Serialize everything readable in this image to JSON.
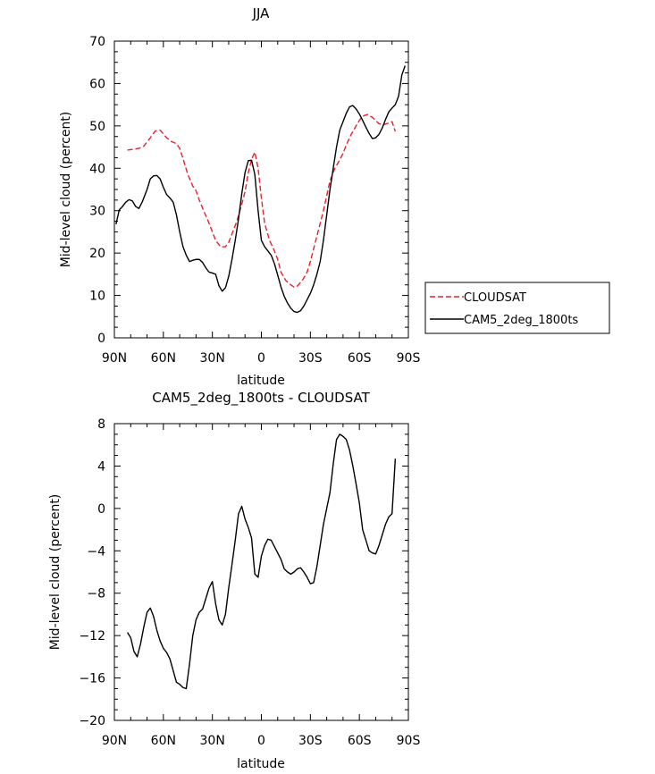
{
  "chart_data": [
    {
      "type": "line",
      "title": "JJA",
      "xlabel": "latitude",
      "ylabel": "Mid-level cloud (percent)",
      "xlim": [
        90,
        -90
      ],
      "ylim": [
        0,
        70
      ],
      "xtick_values": [
        90,
        60,
        30,
        0,
        -30,
        -60,
        -90
      ],
      "xtick_labels": [
        "90N",
        "60N",
        "30N",
        "0",
        "30S",
        "60S",
        "90S"
      ],
      "ytick_values": [
        0,
        10,
        20,
        30,
        40,
        50,
        60,
        70
      ],
      "ytick_labels": [
        "0",
        "10",
        "20",
        "30",
        "40",
        "50",
        "60",
        "70"
      ],
      "grid": false,
      "legend": "right",
      "series": [
        {
          "name": "CLOUDSAT",
          "color": "#e8202a",
          "dash": "dashed",
          "x": [
            82,
            78,
            75,
            72,
            68,
            65,
            62,
            58,
            55,
            52,
            50,
            48,
            45,
            42,
            40,
            38,
            35,
            32,
            30,
            28,
            25,
            22,
            20,
            18,
            15,
            12,
            10,
            8,
            6,
            5,
            4,
            2,
            0,
            -2,
            -5,
            -8,
            -10,
            -12,
            -15,
            -18,
            -20,
            -22,
            -25,
            -28,
            -30,
            -32,
            -35,
            -38,
            -40,
            -42,
            -45,
            -48,
            -50,
            -52,
            -55,
            -58,
            -60,
            -62,
            -65,
            -68,
            -70,
            -72,
            -75,
            -78,
            -80,
            -82
          ],
          "y": [
            44.3,
            44.5,
            44.7,
            45.2,
            47.2,
            48.8,
            49.0,
            47.2,
            46.3,
            45.8,
            44.7,
            42.3,
            38.5,
            35.8,
            34.7,
            32.5,
            29.7,
            27.0,
            25.0,
            23.0,
            21.5,
            21.5,
            22.5,
            24.5,
            27.5,
            31.5,
            34.5,
            39.0,
            42.0,
            43.0,
            43.8,
            40.0,
            33.0,
            27.0,
            23.0,
            20.5,
            18.5,
            15.5,
            13.5,
            12.5,
            12.0,
            12.2,
            13.5,
            15.5,
            18.0,
            21.0,
            25.5,
            30.0,
            33.5,
            37.0,
            40.0,
            42.0,
            43.5,
            45.5,
            48.0,
            50.0,
            51.3,
            52.3,
            52.7,
            52.0,
            51.3,
            50.5,
            50.3,
            50.7,
            51.0,
            48.7
          ]
        },
        {
          "name": "CAM5_2deg_1800ts",
          "color": "#000000",
          "dash": "solid",
          "x": [
            89,
            87,
            85,
            83,
            81,
            79,
            77,
            75,
            73,
            70,
            68,
            66,
            64,
            62,
            60,
            58,
            56,
            54,
            52,
            50,
            48,
            46,
            44,
            42,
            40,
            38,
            36,
            34,
            32,
            30,
            28,
            26,
            24,
            22,
            20,
            18,
            16,
            14,
            12,
            10,
            8,
            6,
            4,
            2,
            0,
            -2,
            -4,
            -6,
            -8,
            -10,
            -12,
            -14,
            -16,
            -18,
            -20,
            -22,
            -24,
            -26,
            -28,
            -30,
            -32,
            -34,
            -36,
            -38,
            -40,
            -42,
            -44,
            -46,
            -48,
            -50,
            -52,
            -54,
            -56,
            -58,
            -60,
            -62,
            -64,
            -66,
            -68,
            -70,
            -72,
            -74,
            -76,
            -78,
            -80,
            -82,
            -84,
            -86,
            -88
          ],
          "y": [
            26.8,
            30.2,
            31.0,
            32.0,
            32.6,
            32.3,
            31.0,
            30.5,
            32.0,
            35.0,
            37.5,
            38.2,
            38.3,
            37.5,
            35.5,
            33.8,
            33.0,
            32.0,
            29.0,
            25.0,
            21.5,
            19.5,
            18.0,
            18.3,
            18.5,
            18.5,
            17.8,
            16.5,
            15.5,
            15.3,
            15.0,
            12.3,
            11.0,
            11.8,
            14.5,
            18.5,
            23.0,
            28.0,
            34.0,
            39.0,
            41.8,
            41.9,
            38.5,
            30.0,
            23.0,
            21.5,
            20.5,
            19.5,
            17.5,
            14.8,
            12.0,
            9.8,
            8.2,
            7.0,
            6.2,
            6.0,
            6.4,
            7.5,
            9.0,
            10.5,
            12.5,
            15.0,
            18.0,
            23.0,
            29.0,
            35.0,
            40.0,
            45.0,
            49.0,
            51.0,
            53.0,
            54.5,
            54.8,
            54.0,
            52.8,
            51.3,
            49.7,
            48.2,
            47.0,
            47.2,
            48.0,
            49.5,
            51.5,
            53.3,
            54.2,
            55.0,
            57.0,
            62.0,
            64.2
          ]
        }
      ]
    },
    {
      "type": "line",
      "title": "CAM5_2deg_1800ts - CLOUDSAT",
      "xlabel": "latitude",
      "ylabel": "Mid-level cloud (percent)",
      "xlim": [
        90,
        -90
      ],
      "ylim": [
        -20,
        8
      ],
      "xtick_values": [
        90,
        60,
        30,
        0,
        -30,
        -60,
        -90
      ],
      "xtick_labels": [
        "90N",
        "60N",
        "30N",
        "0",
        "30S",
        "60S",
        "90S"
      ],
      "ytick_values": [
        -20,
        -16,
        -12,
        -8,
        -4,
        0,
        4,
        8
      ],
      "ytick_labels": [
        "−20",
        "−16",
        "−12",
        "−8",
        "−4",
        "0",
        "4",
        "8"
      ],
      "grid": false,
      "series": [
        {
          "color": "#000000",
          "dash": "solid",
          "x": [
            82,
            80,
            78,
            76,
            74,
            72,
            70,
            68,
            66,
            64,
            62,
            60,
            58,
            56,
            54,
            52,
            50,
            48,
            46,
            44,
            42,
            40,
            38,
            36,
            34,
            32,
            30,
            28,
            26,
            24,
            22,
            20,
            18,
            16,
            14,
            12,
            10,
            8,
            6,
            4,
            2,
            0,
            -2,
            -4,
            -6,
            -8,
            -10,
            -12,
            -14,
            -16,
            -18,
            -20,
            -22,
            -24,
            -26,
            -28,
            -30,
            -32,
            -34,
            -36,
            -38,
            -40,
            -42,
            -44,
            -46,
            -48,
            -50,
            -52,
            -54,
            -56,
            -58,
            -60,
            -62,
            -64,
            -66,
            -68,
            -70,
            -72,
            -74,
            -76,
            -78,
            -80,
            -82
          ],
          "y": [
            -11.7,
            -12.2,
            -13.5,
            -14.0,
            -12.8,
            -11.2,
            -9.8,
            -9.4,
            -10.2,
            -11.5,
            -12.5,
            -13.2,
            -13.6,
            -14.2,
            -15.3,
            -16.4,
            -16.6,
            -16.9,
            -17.0,
            -14.7,
            -12.0,
            -10.5,
            -9.8,
            -9.5,
            -8.5,
            -7.5,
            -6.9,
            -9.0,
            -10.5,
            -11.0,
            -10.0,
            -7.5,
            -5.3,
            -3.0,
            -0.5,
            0.2,
            -1.0,
            -1.8,
            -2.8,
            -6.2,
            -6.5,
            -4.5,
            -3.5,
            -2.9,
            -3.0,
            -3.6,
            -4.2,
            -4.8,
            -5.7,
            -6.0,
            -6.2,
            -6.0,
            -5.7,
            -5.6,
            -6.0,
            -6.5,
            -7.1,
            -7.0,
            -5.5,
            -3.5,
            -1.5,
            0.0,
            1.5,
            4.2,
            6.5,
            7.0,
            6.8,
            6.5,
            5.5,
            4.0,
            2.3,
            0.5,
            -2.0,
            -3.0,
            -4.0,
            -4.2,
            -4.3,
            -3.5,
            -2.5,
            -1.5,
            -0.8,
            -0.5,
            4.7
          ]
        }
      ]
    }
  ]
}
